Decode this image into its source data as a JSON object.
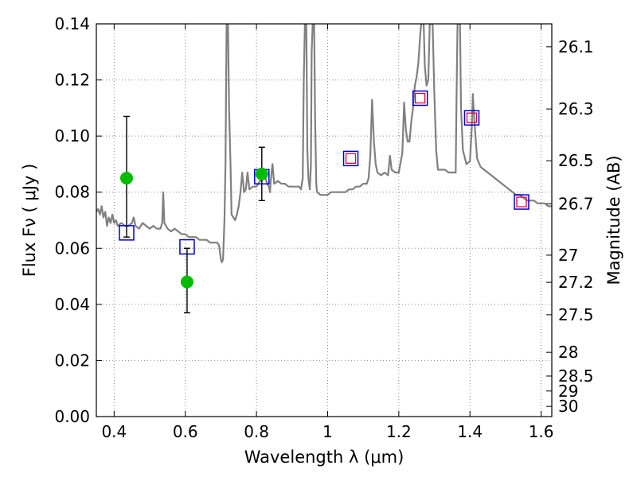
{
  "chart_data": {
    "type": "line",
    "xlabel": "Wavelength  λ (μm)",
    "ylabel": "Flux  Fν  ( μJy )",
    "y2label": "Magnitude (AB)",
    "xlim": [
      0.35,
      1.63
    ],
    "ylim": [
      0.0,
      0.14
    ],
    "grid": true,
    "x_ticks": [
      {
        "v": 0.4,
        "label": "0.4"
      },
      {
        "v": 0.6,
        "label": "0.6"
      },
      {
        "v": 0.8,
        "label": "0.8"
      },
      {
        "v": 1.0,
        "label": "1"
      },
      {
        "v": 1.2,
        "label": "1.2"
      },
      {
        "v": 1.4,
        "label": "1.4"
      },
      {
        "v": 1.6,
        "label": "1.6"
      }
    ],
    "y_ticks": [
      {
        "v": 0.0,
        "label": "0.00"
      },
      {
        "v": 0.02,
        "label": "0.02"
      },
      {
        "v": 0.04,
        "label": "0.04"
      },
      {
        "v": 0.06,
        "label": "0.06"
      },
      {
        "v": 0.08,
        "label": "0.08"
      },
      {
        "v": 0.1,
        "label": "0.10"
      },
      {
        "v": 0.12,
        "label": "0.12"
      },
      {
        "v": 0.14,
        "label": "0.14"
      }
    ],
    "mag_ticks": [
      {
        "v": 26.1,
        "label": "26.1"
      },
      {
        "v": 26.3,
        "label": "26.3"
      },
      {
        "v": 26.5,
        "label": "26.5"
      },
      {
        "v": 26.7,
        "label": "26.7"
      },
      {
        "v": 27.0,
        "label": "27"
      },
      {
        "v": 27.2,
        "label": "27.2"
      },
      {
        "v": 27.5,
        "label": "27.5"
      },
      {
        "v": 28.0,
        "label": "28"
      },
      {
        "v": 28.5,
        "label": "28.5"
      },
      {
        "v": 29.0,
        "label": "29"
      },
      {
        "v": 30.0,
        "label": "30"
      }
    ],
    "colors": {
      "model": "#808080",
      "observed": "#00bb00",
      "model_box": "#0000cc",
      "model_box_inner": "#e0003a",
      "errorbar": "#000000",
      "grid": "#888888"
    },
    "series": [
      {
        "type": "line",
        "points": [
          [
            0.35,
            0.073
          ],
          [
            0.355,
            0.074
          ],
          [
            0.36,
            0.072
          ],
          [
            0.365,
            0.075
          ],
          [
            0.37,
            0.071
          ],
          [
            0.375,
            0.073
          ],
          [
            0.38,
            0.068
          ],
          [
            0.385,
            0.071
          ],
          [
            0.39,
            0.069
          ],
          [
            0.395,
            0.072
          ],
          [
            0.4,
            0.069
          ],
          [
            0.405,
            0.07
          ],
          [
            0.41,
            0.068
          ],
          [
            0.42,
            0.069
          ],
          [
            0.43,
            0.068
          ],
          [
            0.44,
            0.068
          ],
          [
            0.45,
            0.069
          ],
          [
            0.455,
            0.071
          ],
          [
            0.46,
            0.068
          ],
          [
            0.47,
            0.067
          ],
          [
            0.48,
            0.069
          ],
          [
            0.49,
            0.068
          ],
          [
            0.5,
            0.067
          ],
          [
            0.51,
            0.068
          ],
          [
            0.52,
            0.067
          ],
          [
            0.53,
            0.067
          ],
          [
            0.535,
            0.069
          ],
          [
            0.538,
            0.08
          ],
          [
            0.541,
            0.069
          ],
          [
            0.55,
            0.067
          ],
          [
            0.56,
            0.066
          ],
          [
            0.57,
            0.067
          ],
          [
            0.58,
            0.066
          ],
          [
            0.59,
            0.065
          ],
          [
            0.6,
            0.065
          ],
          [
            0.61,
            0.064
          ],
          [
            0.62,
            0.064
          ],
          [
            0.63,
            0.064
          ],
          [
            0.64,
            0.063
          ],
          [
            0.65,
            0.063
          ],
          [
            0.66,
            0.063
          ],
          [
            0.67,
            0.062
          ],
          [
            0.68,
            0.062
          ],
          [
            0.69,
            0.062
          ],
          [
            0.695,
            0.061
          ],
          [
            0.7,
            0.056
          ],
          [
            0.703,
            0.055
          ],
          [
            0.706,
            0.056
          ],
          [
            0.71,
            0.07
          ],
          [
            0.713,
            0.09
          ],
          [
            0.716,
            0.14
          ],
          [
            0.72,
            0.14
          ],
          [
            0.723,
            0.11
          ],
          [
            0.727,
            0.09
          ],
          [
            0.73,
            0.072
          ],
          [
            0.74,
            0.07
          ],
          [
            0.745,
            0.072
          ],
          [
            0.75,
            0.075
          ],
          [
            0.755,
            0.08
          ],
          [
            0.76,
            0.087
          ],
          [
            0.765,
            0.08
          ],
          [
            0.77,
            0.081
          ],
          [
            0.775,
            0.087
          ],
          [
            0.78,
            0.081
          ],
          [
            0.79,
            0.082
          ],
          [
            0.8,
            0.082
          ],
          [
            0.81,
            0.084
          ],
          [
            0.815,
            0.084
          ],
          [
            0.82,
            0.085
          ],
          [
            0.825,
            0.085
          ],
          [
            0.83,
            0.083
          ],
          [
            0.835,
            0.082
          ],
          [
            0.838,
            0.08
          ],
          [
            0.84,
            0.084
          ],
          [
            0.845,
            0.09
          ],
          [
            0.85,
            0.083
          ],
          [
            0.86,
            0.084
          ],
          [
            0.87,
            0.083
          ],
          [
            0.88,
            0.083
          ],
          [
            0.89,
            0.082
          ],
          [
            0.9,
            0.082
          ],
          [
            0.91,
            0.082
          ],
          [
            0.92,
            0.082
          ],
          [
            0.925,
            0.081
          ],
          [
            0.93,
            0.085
          ],
          [
            0.933,
            0.12
          ],
          [
            0.936,
            0.14
          ],
          [
            0.94,
            0.14
          ],
          [
            0.943,
            0.095
          ],
          [
            0.946,
            0.085
          ],
          [
            0.95,
            0.081
          ],
          [
            0.953,
            0.09
          ],
          [
            0.955,
            0.13
          ],
          [
            0.958,
            0.14
          ],
          [
            0.962,
            0.14
          ],
          [
            0.965,
            0.105
          ],
          [
            0.968,
            0.083
          ],
          [
            0.97,
            0.08
          ],
          [
            0.98,
            0.079
          ],
          [
            0.99,
            0.079
          ],
          [
            1.0,
            0.079
          ],
          [
            1.01,
            0.08
          ],
          [
            1.02,
            0.08
          ],
          [
            1.03,
            0.08
          ],
          [
            1.04,
            0.08
          ],
          [
            1.05,
            0.08
          ],
          [
            1.06,
            0.081
          ],
          [
            1.07,
            0.081
          ],
          [
            1.08,
            0.082
          ],
          [
            1.09,
            0.082
          ],
          [
            1.1,
            0.083
          ],
          [
            1.11,
            0.083
          ],
          [
            1.115,
            0.085
          ],
          [
            1.12,
            0.093
          ],
          [
            1.125,
            0.113
          ],
          [
            1.13,
            0.098
          ],
          [
            1.135,
            0.09
          ],
          [
            1.14,
            0.087
          ],
          [
            1.15,
            0.086
          ],
          [
            1.16,
            0.087
          ],
          [
            1.17,
            0.086
          ],
          [
            1.175,
            0.093
          ],
          [
            1.18,
            0.088
          ],
          [
            1.19,
            0.087
          ],
          [
            1.2,
            0.087
          ],
          [
            1.21,
            0.094
          ],
          [
            1.215,
            0.112
          ],
          [
            1.22,
            0.102
          ],
          [
            1.225,
            0.098
          ],
          [
            1.23,
            0.098
          ],
          [
            1.235,
            0.105
          ],
          [
            1.24,
            0.11
          ],
          [
            1.245,
            0.118
          ],
          [
            1.25,
            0.121
          ],
          [
            1.255,
            0.126
          ],
          [
            1.26,
            0.136
          ],
          [
            1.263,
            0.14
          ],
          [
            1.27,
            0.14
          ],
          [
            1.273,
            0.125
          ],
          [
            1.278,
            0.118
          ],
          [
            1.283,
            0.12
          ],
          [
            1.287,
            0.14
          ],
          [
            1.295,
            0.14
          ],
          [
            1.3,
            0.115
          ],
          [
            1.305,
            0.095
          ],
          [
            1.31,
            0.088
          ],
          [
            1.32,
            0.088
          ],
          [
            1.33,
            0.088
          ],
          [
            1.34,
            0.087
          ],
          [
            1.35,
            0.087
          ],
          [
            1.36,
            0.087
          ],
          [
            1.362,
            0.11
          ],
          [
            1.365,
            0.14
          ],
          [
            1.372,
            0.14
          ],
          [
            1.375,
            0.11
          ],
          [
            1.38,
            0.095
          ],
          [
            1.39,
            0.09
          ],
          [
            1.4,
            0.091
          ],
          [
            1.405,
            0.103
          ],
          [
            1.408,
            0.115
          ],
          [
            1.412,
            0.106
          ],
          [
            1.42,
            0.092
          ],
          [
            1.43,
            0.089
          ],
          [
            1.44,
            0.088
          ],
          [
            1.45,
            0.087
          ],
          [
            1.46,
            0.086
          ],
          [
            1.47,
            0.085
          ],
          [
            1.48,
            0.084
          ],
          [
            1.49,
            0.083
          ],
          [
            1.5,
            0.082
          ],
          [
            1.51,
            0.081
          ],
          [
            1.52,
            0.08
          ],
          [
            1.53,
            0.079
          ],
          [
            1.54,
            0.079
          ],
          [
            1.55,
            0.078
          ],
          [
            1.56,
            0.077
          ],
          [
            1.57,
            0.077
          ],
          [
            1.58,
            0.077
          ],
          [
            1.59,
            0.076
          ],
          [
            1.6,
            0.076
          ],
          [
            1.61,
            0.076
          ],
          [
            1.62,
            0.075
          ],
          [
            1.63,
            0.075
          ]
        ]
      },
      {
        "type": "scatter",
        "marker": "square",
        "points": [
          [
            0.435,
            0.0655
          ],
          [
            0.605,
            0.0605
          ],
          [
            0.815,
            0.0855
          ],
          [
            1.065,
            0.092
          ],
          [
            1.26,
            0.1135
          ],
          [
            1.405,
            0.1065
          ],
          [
            1.545,
            0.0765
          ]
        ]
      },
      {
        "type": "scatter",
        "marker": "square-inner",
        "points": [
          [
            1.065,
            0.092
          ],
          [
            1.26,
            0.1135
          ],
          [
            1.405,
            0.1065
          ],
          [
            1.545,
            0.0765
          ]
        ]
      },
      {
        "type": "scatter",
        "marker": "circle",
        "points": [
          {
            "x": 0.435,
            "y": 0.085,
            "err_lo": 0.064,
            "err_hi": 0.107
          },
          {
            "x": 0.605,
            "y": 0.048,
            "err_lo": 0.037,
            "err_hi": 0.06
          },
          {
            "x": 0.815,
            "y": 0.0865,
            "err_lo": 0.077,
            "err_hi": 0.096
          }
        ]
      }
    ]
  }
}
